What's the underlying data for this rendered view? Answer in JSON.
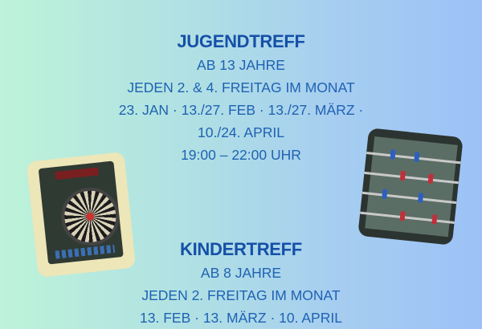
{
  "jugendtreff": {
    "title": "JUGENDTREFF",
    "lines": [
      "AB 13 JAHRE",
      "JEDEN 2. & 4. FREITAG IM MONAT",
      "23. JAN · 13./27. FEB · 13./27. MÄRZ ·",
      "10./24. APRIL",
      "19:00 – 22:00 UHR"
    ]
  },
  "kindertreff": {
    "title": "KINDERTREFF",
    "lines": [
      "AB 8 JAHRE",
      "JEDEN 2. FREITAG IM MONAT",
      "13. FEB · 13. MÄRZ · 10. APRIL"
    ]
  },
  "images": [
    "dartboard-photo",
    "foosball-table-photo"
  ],
  "colors": {
    "text": "#1f62b3",
    "title": "#1550a8",
    "bg_left": "#bdf3d9",
    "bg_right": "#9cc2f7"
  }
}
